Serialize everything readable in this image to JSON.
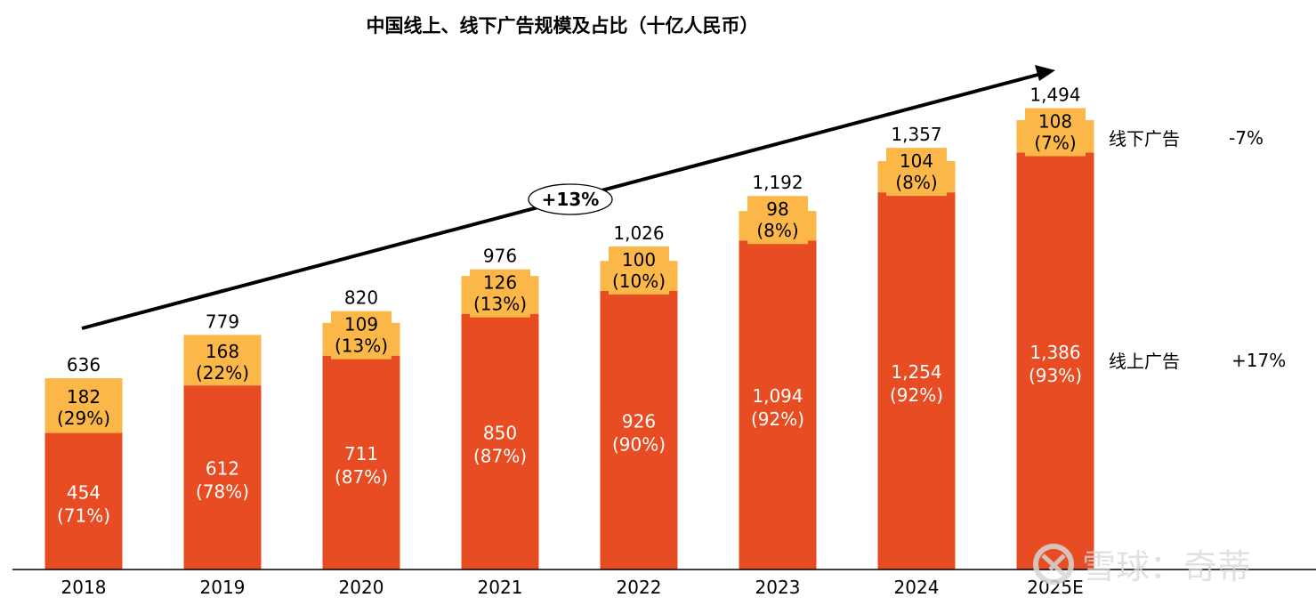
{
  "chart_data": {
    "type": "bar",
    "stacked": true,
    "title": "中国线上、线下广告规模及占比（十亿人民币）",
    "categories": [
      "2018",
      "2019",
      "2020",
      "2021",
      "2022",
      "2023",
      "2024",
      "2025E"
    ],
    "series": [
      {
        "name": "线上广告",
        "color": "#E84C22",
        "values": [
          454,
          612,
          711,
          850,
          926,
          1094,
          1254,
          1386
        ],
        "value_labels": [
          "454",
          "612",
          "711",
          "850",
          "926",
          "1,094",
          "1,254",
          "1,386"
        ],
        "share_labels": [
          "(71%)",
          "(78%)",
          "(87%)",
          "(87%)",
          "(90%)",
          "(92%)",
          "(92%)",
          "(93%)"
        ]
      },
      {
        "name": "线下广告",
        "color": "#FBB848",
        "values": [
          182,
          168,
          109,
          126,
          100,
          98,
          104,
          108
        ],
        "value_labels": [
          "182",
          "168",
          "109",
          "126",
          "100",
          "98",
          "104",
          "108"
        ],
        "share_labels": [
          "(29%)",
          "(22%)",
          "(13%)",
          "(13%)",
          "(10%)",
          "(8%)",
          "(8%)",
          "(7%)"
        ]
      }
    ],
    "totals": [
      636,
      779,
      820,
      976,
      1026,
      1192,
      1357,
      1494
    ],
    "total_labels": [
      "636",
      "779",
      "820",
      "976",
      "1,026",
      "1,192",
      "1,357",
      "1,494"
    ],
    "xlabel": "",
    "ylabel": "",
    "ylim": [
      0,
      1550
    ],
    "grid": false,
    "legend": {
      "placement": "right",
      "items": [
        {
          "name": "线下广告",
          "growth": "-7%"
        },
        {
          "name": "线上广告",
          "growth": "+17%"
        }
      ]
    },
    "annotations": [
      {
        "type": "trend-arrow",
        "label": "+13%",
        "from_category": "2018",
        "to_category": "2025E"
      }
    ]
  },
  "watermark": {
    "text": "雪球：奇蒂"
  }
}
